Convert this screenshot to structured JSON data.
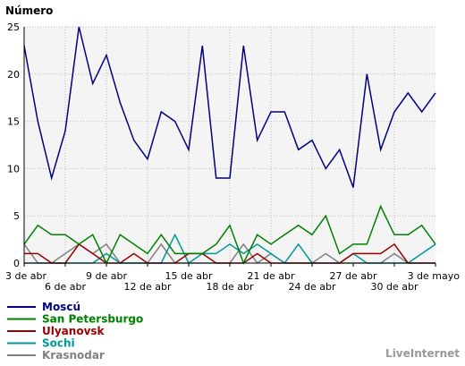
{
  "chart_data": {
    "type": "line",
    "ylabel": "Número",
    "ylim": [
      0,
      25
    ],
    "yticks": [
      0,
      5,
      10,
      15,
      20,
      25
    ],
    "grid": true,
    "x_count": 31,
    "xticks_top": [
      {
        "i": 0,
        "label": "3 de abr"
      },
      {
        "i": 6,
        "label": "9 de abr"
      },
      {
        "i": 12,
        "label": "15 de abr"
      },
      {
        "i": 18,
        "label": "21 de abr"
      },
      {
        "i": 24,
        "label": "27 de abr"
      },
      {
        "i": 30,
        "label": "3 de mayo"
      }
    ],
    "xticks_bottom": [
      {
        "i": 3,
        "label": "6 de abr"
      },
      {
        "i": 9,
        "label": "12 de abr"
      },
      {
        "i": 15,
        "label": "18 de abr"
      },
      {
        "i": 21,
        "label": "24 de abr"
      },
      {
        "i": 27,
        "label": "30 de abr"
      }
    ],
    "series": [
      {
        "name": "Moscú",
        "color": "#000080",
        "values": [
          23,
          15,
          9,
          14,
          25,
          19,
          22,
          17,
          13,
          11,
          16,
          15,
          12,
          23,
          9,
          9,
          23,
          13,
          16,
          16,
          12,
          13,
          10,
          12,
          8,
          20,
          12,
          16,
          18,
          16,
          18
        ]
      },
      {
        "name": "San Petersburgo",
        "color": "#008000",
        "values": [
          2,
          4,
          3,
          3,
          2,
          3,
          0,
          3,
          2,
          1,
          3,
          1,
          1,
          1,
          2,
          4,
          0,
          3,
          2,
          3,
          4,
          3,
          5,
          1,
          2,
          2,
          6,
          3,
          3,
          4,
          2
        ]
      },
      {
        "name": "Ulyanovsk",
        "color": "#990000",
        "values": [
          1,
          1,
          0,
          0,
          2,
          1,
          0,
          0,
          1,
          0,
          0,
          0,
          1,
          1,
          0,
          0,
          0,
          1,
          0,
          0,
          0,
          0,
          0,
          0,
          1,
          1,
          1,
          2,
          0,
          0,
          0
        ]
      },
      {
        "name": "Sochi",
        "color": "#009999",
        "values": [
          0,
          0,
          0,
          0,
          0,
          0,
          1,
          0,
          0,
          0,
          0,
          3,
          0,
          1,
          1,
          2,
          1,
          2,
          1,
          0,
          2,
          0,
          0,
          0,
          1,
          0,
          0,
          0,
          0,
          1,
          2
        ]
      },
      {
        "name": "Krasnodar",
        "color": "#808080",
        "values": [
          2,
          0,
          0,
          1,
          2,
          1,
          2,
          0,
          0,
          0,
          2,
          0,
          0,
          0,
          0,
          0,
          2,
          0,
          1,
          0,
          0,
          0,
          1,
          0,
          0,
          0,
          0,
          1,
          0,
          0,
          0
        ]
      }
    ]
  },
  "brand": "LiveInternet"
}
